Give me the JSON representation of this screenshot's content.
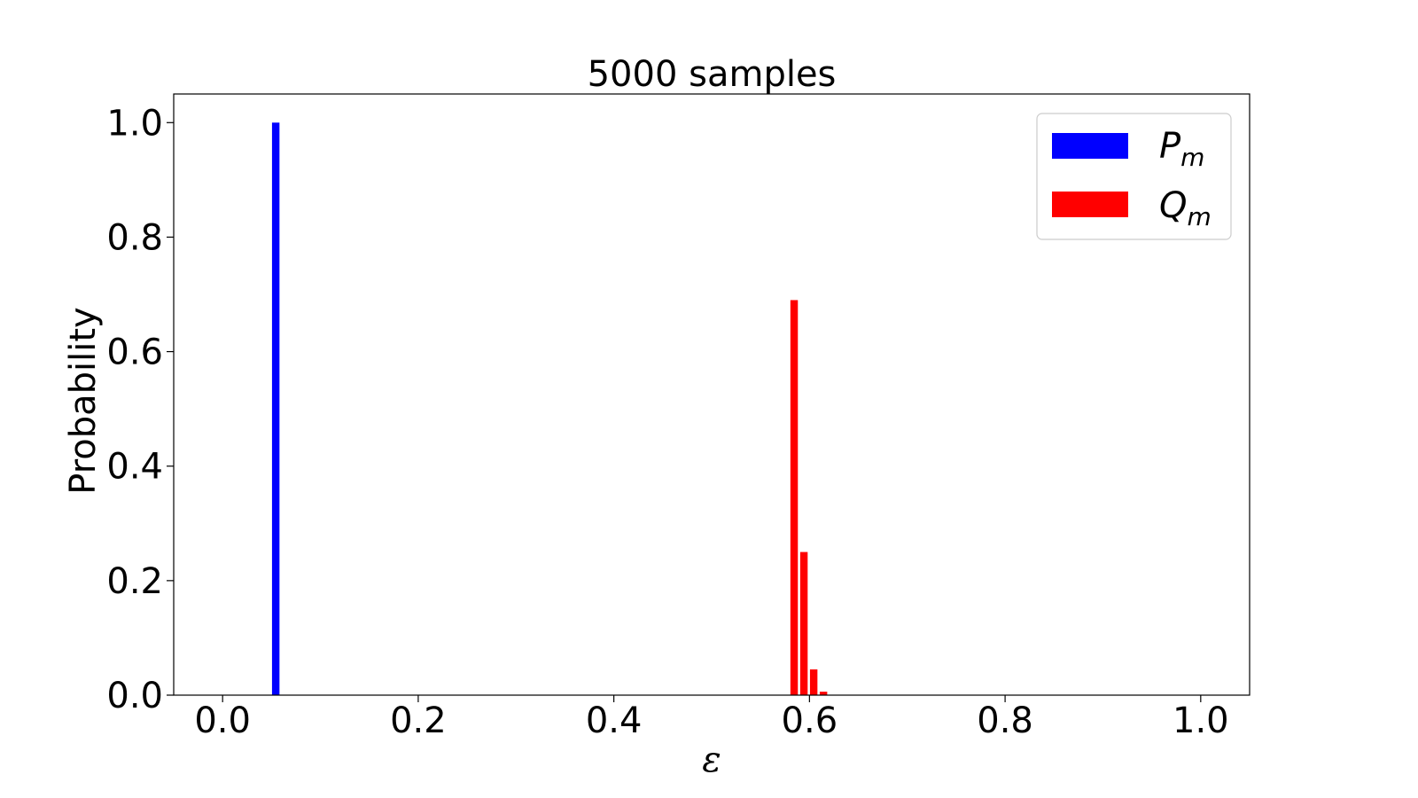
{
  "chart_data": {
    "type": "bar",
    "title": "5000 samples",
    "xlabel": "ε",
    "ylabel": "Probability",
    "xlim": [
      -0.05,
      1.05
    ],
    "ylim": [
      0,
      1.05
    ],
    "xticks": [
      0.0,
      0.2,
      0.4,
      0.6,
      0.8,
      1.0
    ],
    "xtick_labels": [
      "0.0",
      "0.2",
      "0.4",
      "0.6",
      "0.8",
      "1.0"
    ],
    "yticks": [
      0.0,
      0.2,
      0.4,
      0.6,
      0.8,
      1.0
    ],
    "ytick_labels": [
      "0.0",
      "0.2",
      "0.4",
      "0.6",
      "0.8",
      "1.0"
    ],
    "bar_width": 0.009,
    "grid": false,
    "legend_position": "top-right",
    "series": [
      {
        "name": "P",
        "subscript": "m",
        "color": "#0000ff",
        "x": [
          0.055
        ],
        "values": [
          1.0
        ]
      },
      {
        "name": "Q",
        "subscript": "m",
        "color": "#ff0000",
        "x": [
          0.585,
          0.595,
          0.605,
          0.615
        ],
        "values": [
          0.69,
          0.25,
          0.045,
          0.006
        ]
      }
    ]
  }
}
